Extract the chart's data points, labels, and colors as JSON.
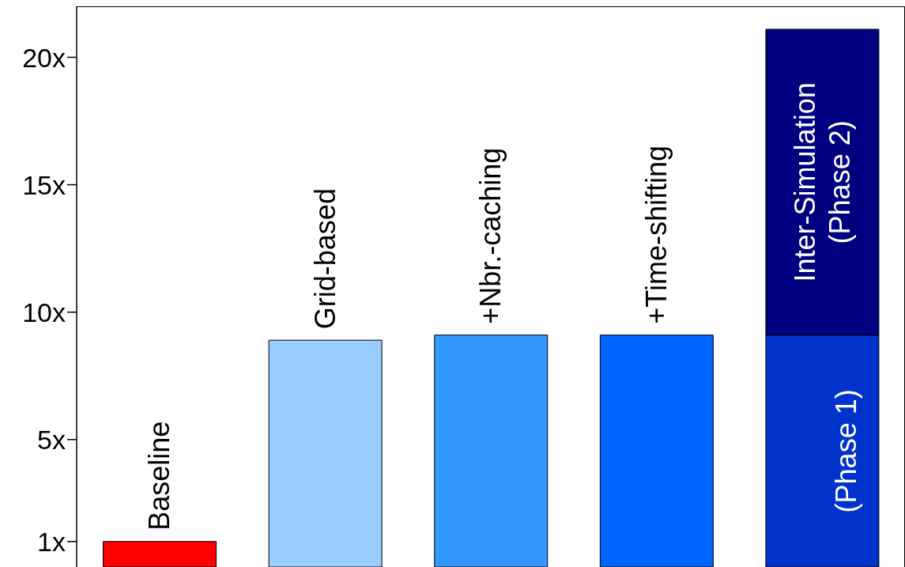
{
  "chart_data": {
    "type": "bar",
    "stacked": true,
    "tick_labels": "y",
    "categories": [
      "Baseline",
      "Grid-based",
      "+Nbr.-caching",
      "+Time-shifting",
      "Inter-Simulation"
    ],
    "series": [
      {
        "values": [
          1,
          8.9,
          9.1,
          9.1,
          9.1
        ],
        "colors": [
          "#ff0000",
          "#99ccff",
          "#3399ff",
          "#0066ff",
          "#0033cc"
        ]
      },
      {
        "values": [
          null,
          null,
          null,
          null,
          12.0
        ],
        "color": "#000080"
      }
    ],
    "ylim": [
      0,
      22
    ],
    "yticks": [
      {
        "value": 1,
        "label": "1x"
      },
      {
        "value": 5,
        "label": "5x"
      },
      {
        "value": 10,
        "label": "10x"
      },
      {
        "value": 15,
        "label": "15x"
      },
      {
        "value": 20,
        "label": "20x"
      }
    ],
    "annotations": [
      "(Phase 1)",
      "(Phase 2)"
    ]
  }
}
